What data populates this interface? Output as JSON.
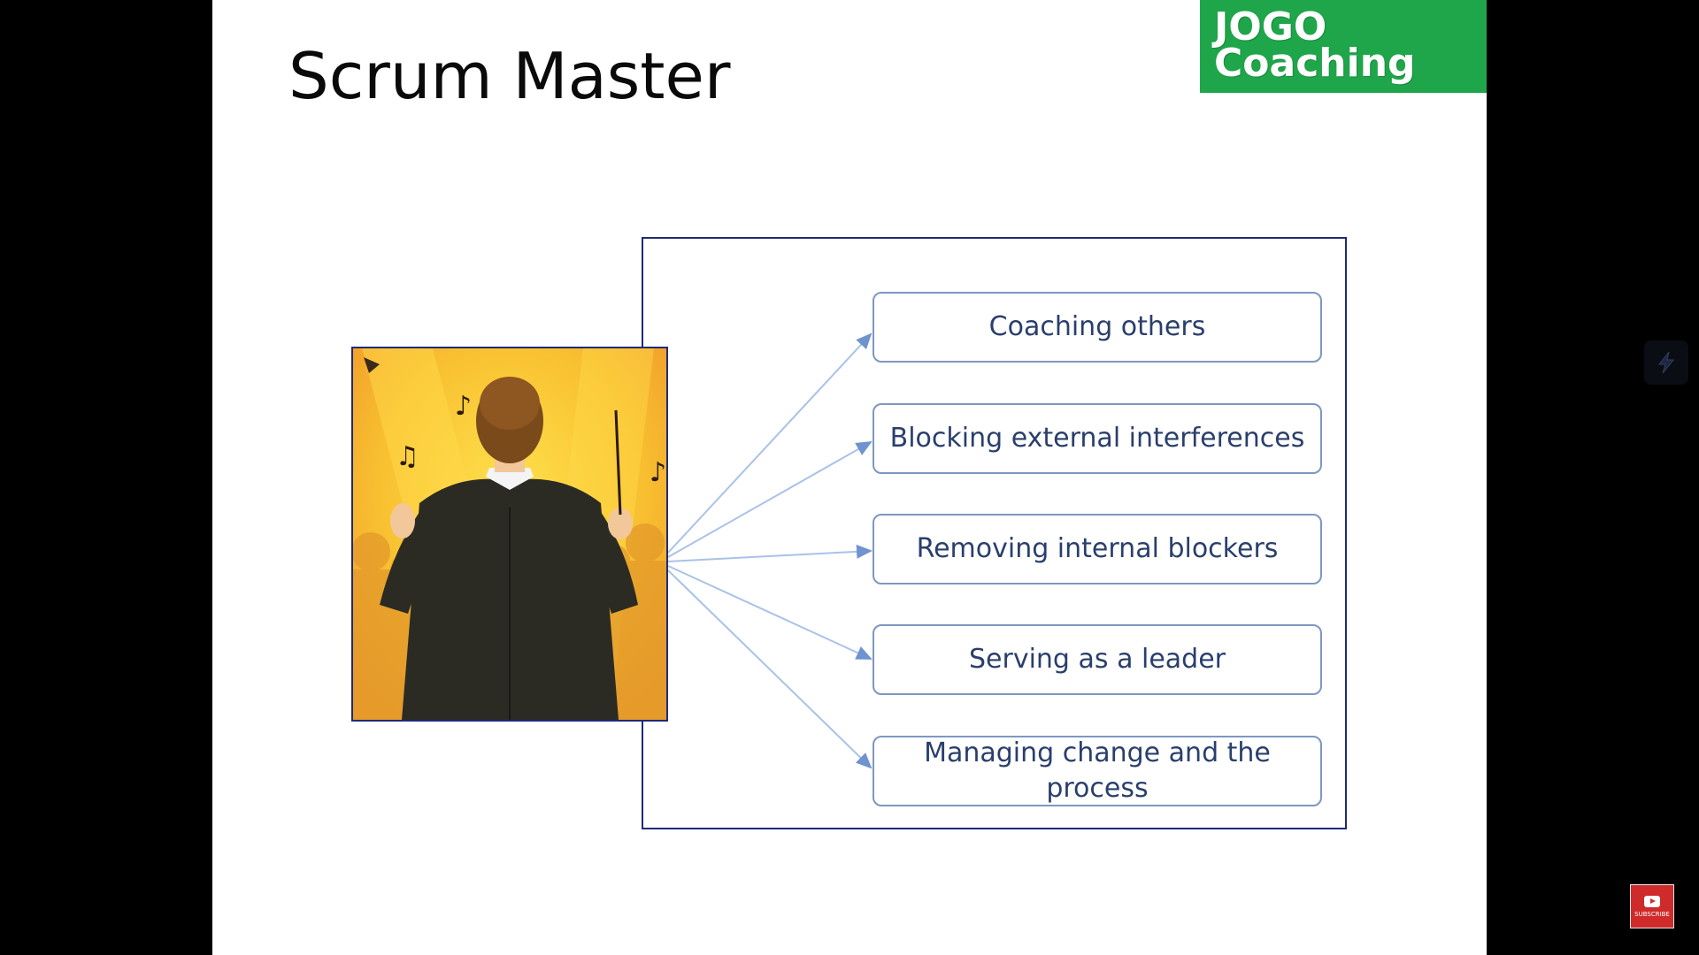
{
  "slide": {
    "title": "Scrum Master",
    "logo": {
      "line1": "JOGO",
      "line2": "Coaching"
    }
  },
  "diagram": {
    "roles": [
      {
        "label": "Coaching others"
      },
      {
        "label": "Blocking external interferences"
      },
      {
        "label": "Removing internal blockers"
      },
      {
        "label": "Serving as a leader"
      },
      {
        "label": "Managing change and the process"
      }
    ],
    "picture": "conductor-illustration"
  },
  "overlay": {
    "subscribe_label": "SUBSCRIBE",
    "side_widget_icon": "lightning-icon"
  },
  "colors": {
    "logo_green": "#1fa54a",
    "frame_navy": "#1f2a78",
    "box_border": "#7d97c2",
    "box_text": "#2a3f6c",
    "arrow": "#9fb8e0",
    "picture_bg": "#f6b530"
  }
}
